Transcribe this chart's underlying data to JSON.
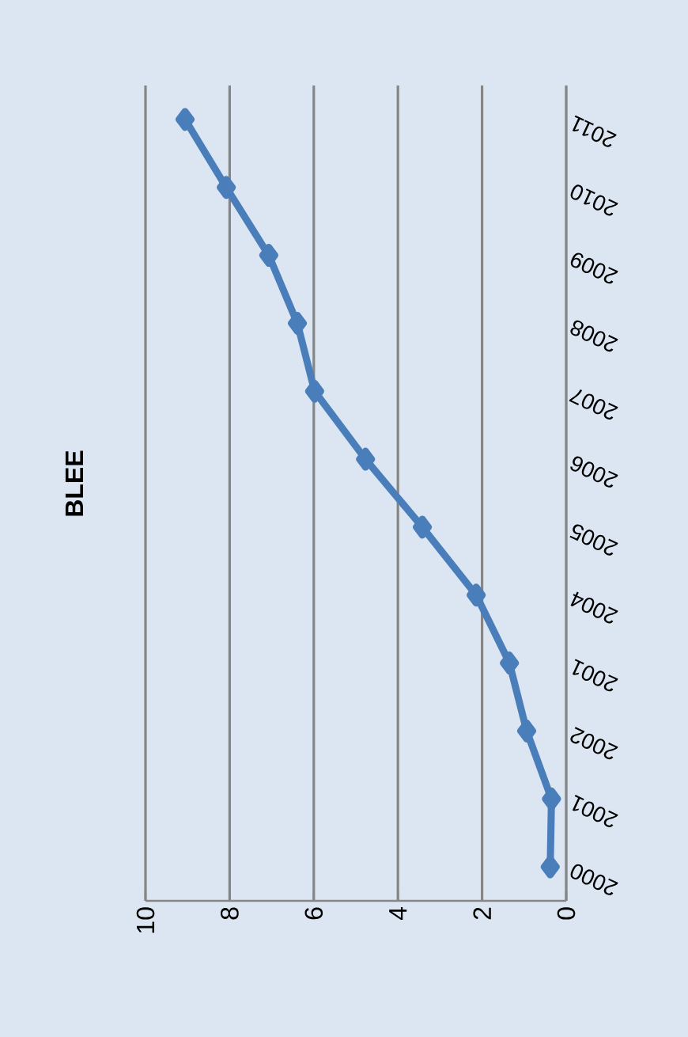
{
  "chart_data": {
    "type": "line",
    "title": "BLEE",
    "orientation": "horizontal",
    "categories": [
      "2011",
      "2010",
      "2009",
      "2008",
      "2007",
      "2006",
      "2005",
      "2004",
      "2001",
      "2002",
      "2001",
      "2000"
    ],
    "values": [
      9.06,
      8.08,
      7.07,
      6.39,
      5.98,
      4.77,
      3.42,
      2.14,
      1.35,
      0.94,
      0.35,
      0.38
    ],
    "color": "#4a7ebb",
    "xlim": [
      10,
      0
    ],
    "xticks": [
      0,
      2,
      4,
      6,
      8,
      10
    ],
    "grid": "x",
    "marker": "diamond"
  }
}
